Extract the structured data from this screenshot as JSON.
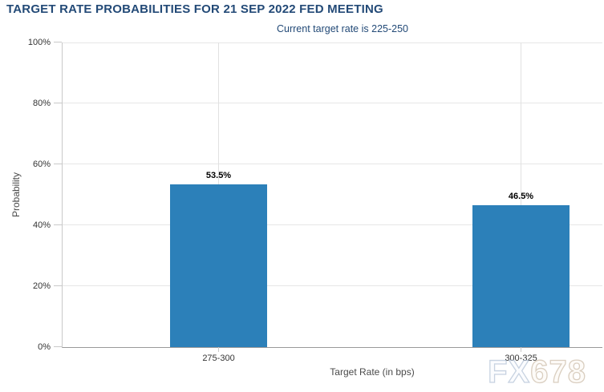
{
  "chart_data": {
    "type": "bar",
    "title": "TARGET RATE PROBABILITIES FOR 21 SEP 2022 FED MEETING",
    "subtitle": "Current target rate is 225-250",
    "xlabel": "Target Rate (in bps)",
    "ylabel": "Probability",
    "categories": [
      "275-300",
      "300-325"
    ],
    "values": [
      53.5,
      46.5
    ],
    "data_labels": [
      "53.5%",
      "46.5%"
    ],
    "ylim": [
      0,
      100
    ],
    "ytick_step": 20,
    "ytick_labels": [
      "0%",
      "20%",
      "40%",
      "60%",
      "80%",
      "100%"
    ],
    "grid": true,
    "legend_position": "none",
    "bar_color": "#2c80b9"
  },
  "colors": {
    "title_text": "#234a77",
    "bar": "#2c80b9",
    "gridline": "#e6e6e6",
    "axis_line": "#c9c9c9"
  },
  "watermark": {
    "part1": "FX",
    "part2": "678"
  }
}
